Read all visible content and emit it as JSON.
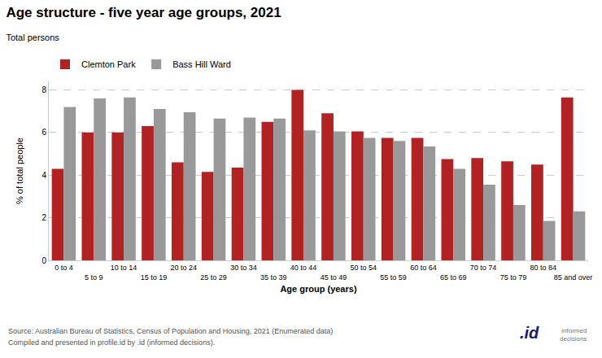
{
  "chart_data": {
    "type": "bar",
    "title": "Age structure - five year age groups, 2021",
    "subtitle": "Total persons",
    "xlabel": "Age group (years)",
    "ylabel": "% of total people",
    "categories": [
      "0 to 4",
      "5 to 9",
      "10 to 14",
      "15 to 19",
      "20 to 24",
      "25 to 29",
      "30 to 34",
      "35 to 39",
      "40 to 44",
      "45 to 49",
      "50 to 54",
      "55 to 59",
      "60 to 64",
      "65 to 69",
      "70 to 74",
      "75 to 79",
      "80 to 84",
      "85 and over"
    ],
    "series": [
      {
        "name": "Clemton Park",
        "color": "#b22222",
        "values": [
          4.3,
          6.0,
          6.0,
          6.3,
          4.6,
          4.15,
          4.35,
          6.5,
          8.0,
          6.9,
          6.05,
          5.75,
          5.75,
          4.75,
          4.8,
          4.65,
          4.5,
          7.65
        ]
      },
      {
        "name": "Bass Hill Ward",
        "color": "#999999",
        "values": [
          7.2,
          7.6,
          7.65,
          7.1,
          6.95,
          6.65,
          6.7,
          6.65,
          6.1,
          6.05,
          5.75,
          5.6,
          5.35,
          4.3,
          3.55,
          2.6,
          1.85,
          2.3
        ]
      }
    ],
    "ylim": [
      0,
      8.4
    ],
    "yticks": [
      0,
      2,
      4,
      6,
      8
    ],
    "grid": true,
    "legend": "upper left",
    "annotations": [
      "Source: Australian Bureau of Statistics, Census of Population and Housing, 2021 (Enumerated data)",
      "Compiled and presented in profile.id by .id (informed decisions).",
      "informed\ndecisions",
      ".id"
    ]
  }
}
